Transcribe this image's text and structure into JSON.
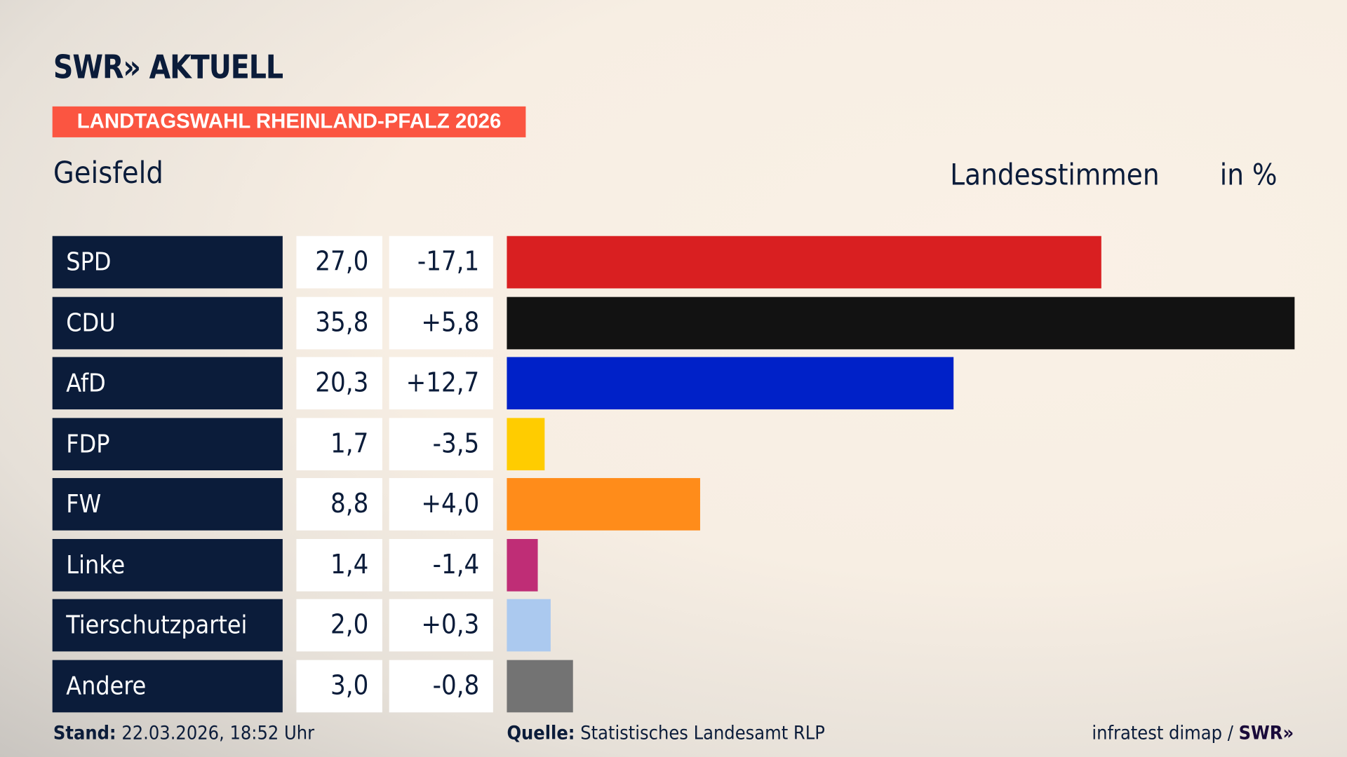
{
  "header": {
    "logo": "SWR» AKTUELL",
    "banner": "LANDTAGSWAHL RHEINLAND-PFALZ 2026",
    "region": "Geisfeld",
    "metric": "Landesstimmen",
    "unit": "in %"
  },
  "colors": {
    "banner": "#fb5541",
    "label_bg": "#0b1c3a"
  },
  "chart_data": {
    "type": "bar",
    "orientation": "horizontal",
    "xlim": [
      0,
      35.8
    ],
    "categories": [
      "SPD",
      "CDU",
      "AfD",
      "FDP",
      "FW",
      "Linke",
      "Tierschutzpartei",
      "Andere"
    ],
    "values": [
      27.0,
      35.8,
      20.3,
      1.7,
      8.8,
      1.4,
      2.0,
      3.0
    ],
    "value_labels": [
      "27,0",
      "35,8",
      "20,3",
      "1,7",
      "8,8",
      "1,4",
      "2,0",
      "3,0"
    ],
    "diff_labels": [
      "-17,1",
      "+5,8",
      "+12,7",
      "-3,5",
      "+4,0",
      "-1,4",
      "+0,3",
      "-0,8"
    ],
    "bar_colors": [
      "#d91f21",
      "#121212",
      "#0021c8",
      "#ffcc00",
      "#ff8c1a",
      "#bf2d76",
      "#abc9ef",
      "#737373"
    ]
  },
  "footer": {
    "stand_label": "Stand:",
    "stand_value": "22.03.2026, 18:52 Uhr",
    "quelle_label": "Quelle:",
    "quelle_value": "Statistisches Landesamt RLP",
    "credit": "infratest dimap /",
    "credit_logo": "SWR»"
  }
}
